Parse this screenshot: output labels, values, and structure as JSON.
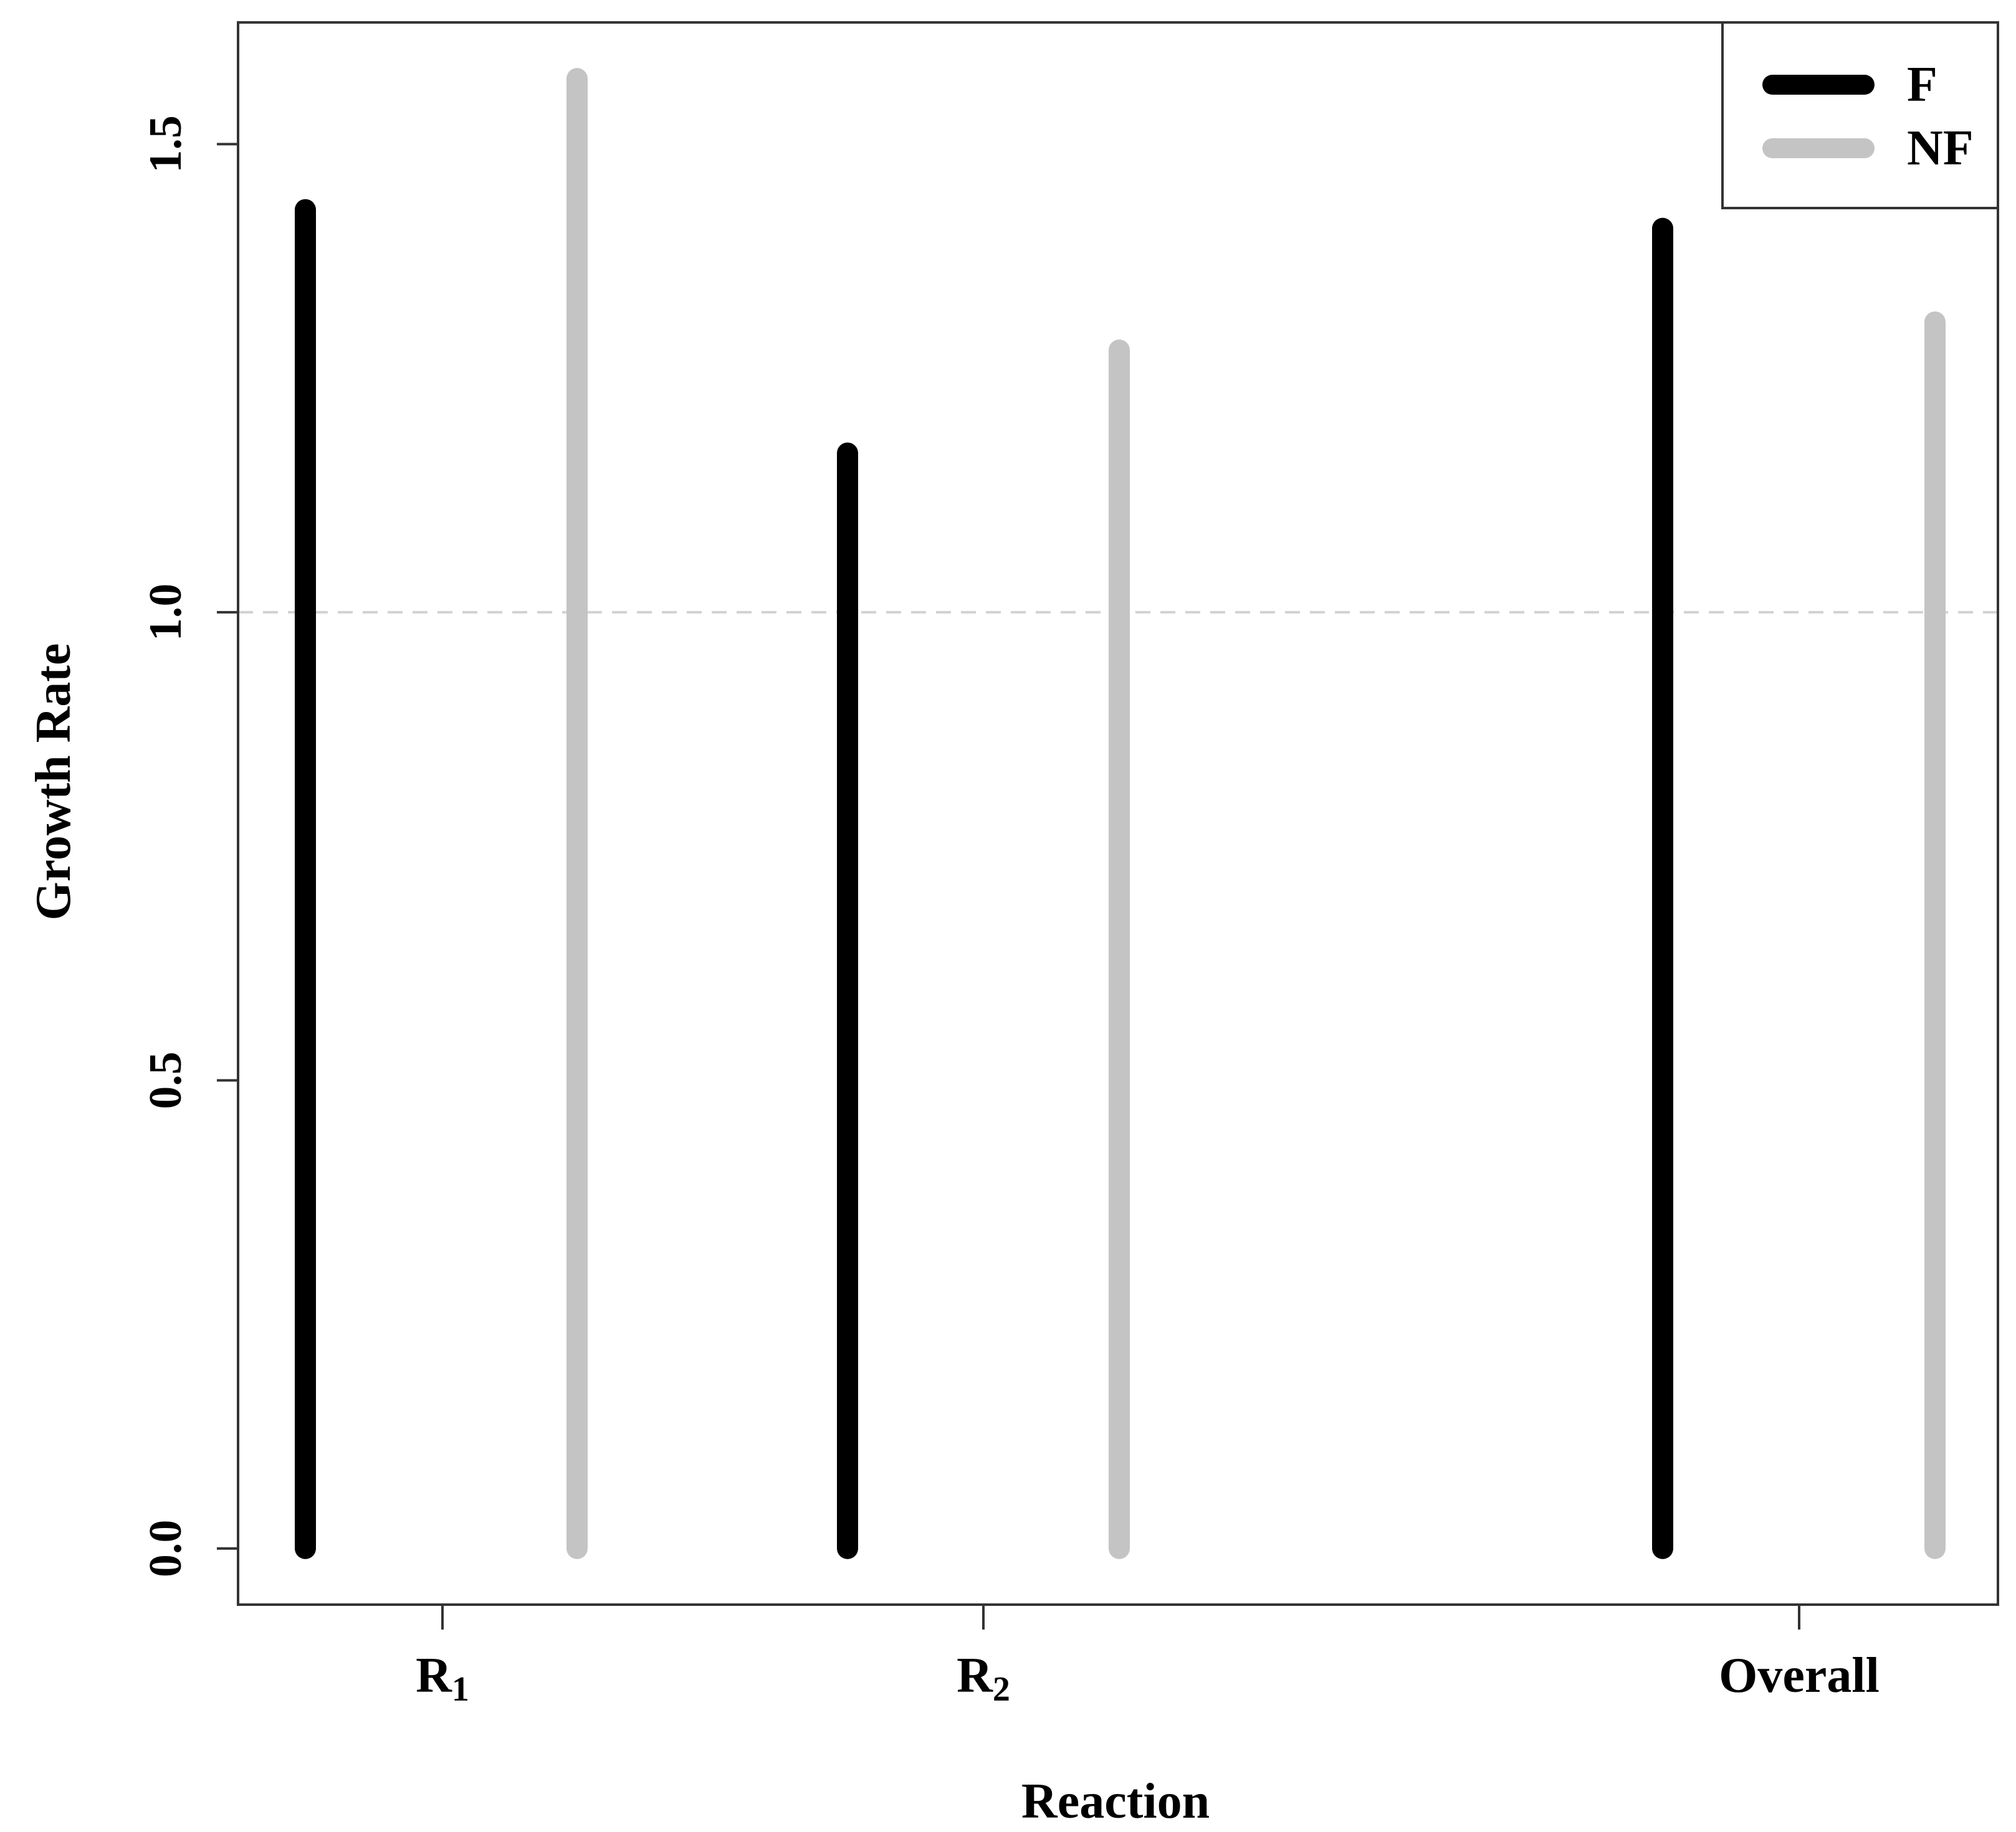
{
  "chart_data": {
    "type": "bar",
    "xlabel": "Reaction",
    "ylabel": "Growth Rate",
    "categories": [
      {
        "base": "R",
        "sub": "1"
      },
      {
        "base": "R",
        "sub": "2"
      },
      {
        "base": "Overall",
        "sub": ""
      }
    ],
    "series": [
      {
        "name": "F",
        "color": "#000000",
        "values": [
          1.43,
          1.17,
          1.41
        ]
      },
      {
        "name": "NF",
        "color": "#c4c4c4",
        "values": [
          1.57,
          1.28,
          1.31
        ]
      }
    ],
    "ylim": [
      -0.06,
      1.63
    ],
    "yticks": [
      "0.0",
      "0.5",
      "1.0",
      "1.5"
    ],
    "reference_line": {
      "y": 1.0,
      "style": "dashed",
      "color": "#d2d2d2"
    },
    "grid": false,
    "legend": {
      "position": "top-right"
    }
  }
}
